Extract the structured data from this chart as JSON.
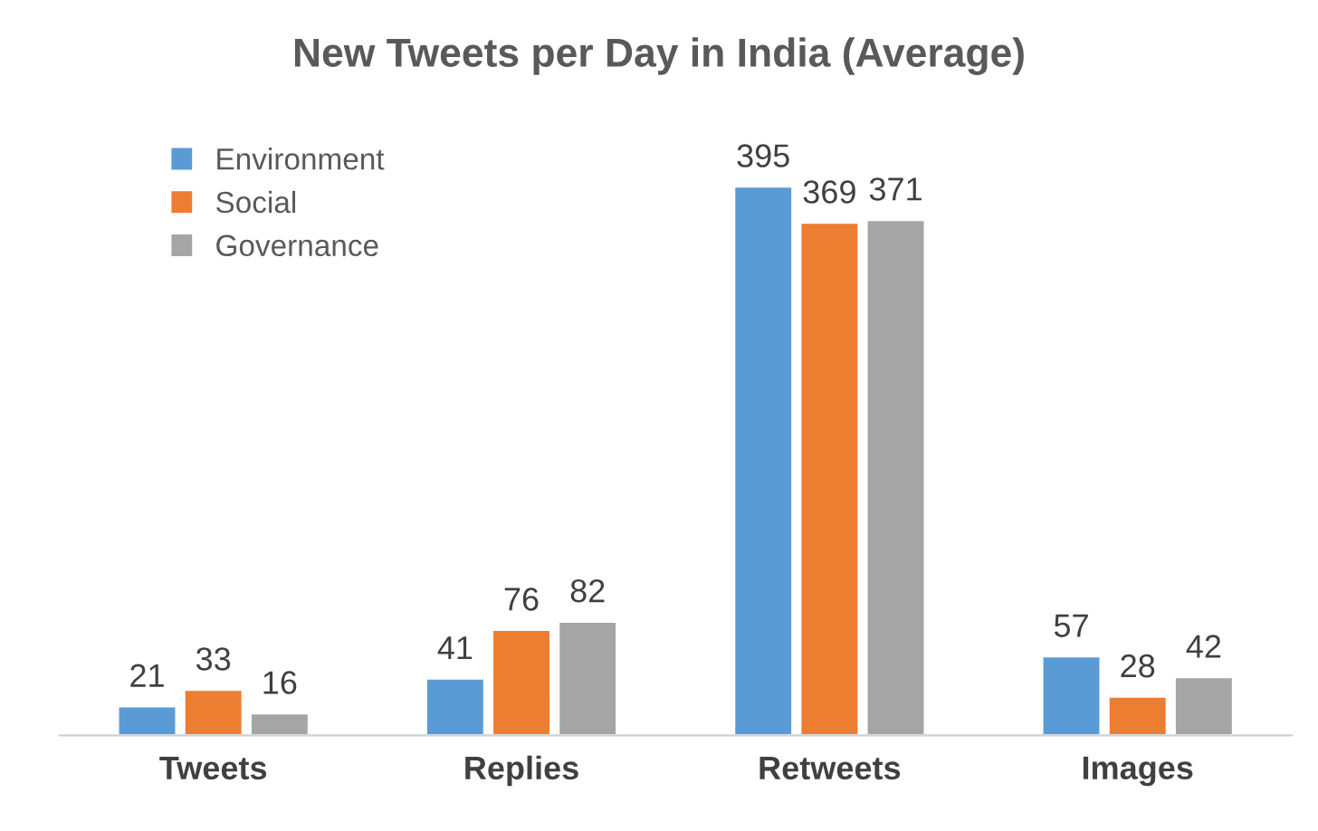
{
  "chart_data": {
    "type": "bar",
    "title": "New Tweets per Day in India (Average)",
    "categories": [
      "Tweets",
      "Replies",
      "Retweets",
      "Images"
    ],
    "series": [
      {
        "name": "Environment",
        "color": "#5b9bd5",
        "values": [
          21,
          41,
          395,
          57
        ]
      },
      {
        "name": "Social",
        "color": "#ed7d31",
        "values": [
          33,
          76,
          369,
          28
        ]
      },
      {
        "name": "Governance",
        "color": "#a5a5a5",
        "values": [
          16,
          82,
          371,
          42
        ]
      }
    ],
    "data_labels": true,
    "legend": "top left"
  }
}
